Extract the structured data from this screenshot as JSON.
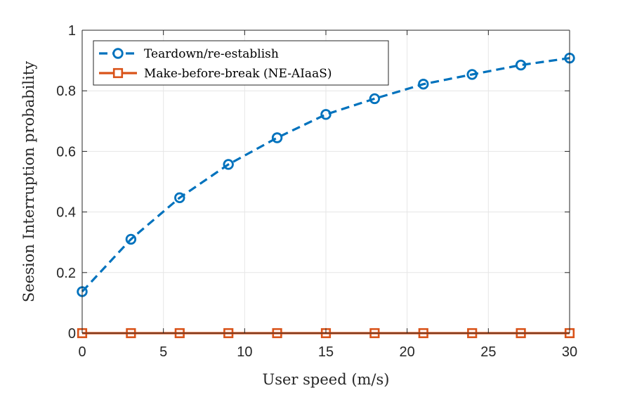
{
  "chart_data": {
    "type": "line",
    "xlabel": "User speed (m/s)",
    "ylabel": "Seesion Interruption probability",
    "xlim": [
      0,
      30
    ],
    "ylim": [
      0,
      1
    ],
    "xticks": [
      0,
      5,
      10,
      15,
      20,
      25,
      30
    ],
    "yticks": [
      0,
      0.2,
      0.4,
      0.6,
      0.8,
      1
    ],
    "xtick_labels": [
      "0",
      "5",
      "10",
      "15",
      "20",
      "25",
      "30"
    ],
    "ytick_labels": [
      "0",
      "0.2",
      "0.4",
      "0.6",
      "0.8",
      "1"
    ],
    "grid": true,
    "legend_position": "top-left",
    "series": [
      {
        "name": "Teardown/re-establish",
        "color": "#0072BD",
        "line_style": "dashed",
        "marker": "circle",
        "x": [
          0,
          3,
          6,
          9,
          12,
          15,
          18,
          21,
          24,
          27,
          30
        ],
        "y": [
          0.137,
          0.31,
          0.447,
          0.557,
          0.645,
          0.722,
          0.774,
          0.822,
          0.854,
          0.885,
          0.908
        ]
      },
      {
        "name": "Make-before-break (NE-AIaaS)",
        "color": "#D95319",
        "line_style": "solid",
        "marker": "square",
        "x": [
          0,
          3,
          6,
          9,
          12,
          15,
          18,
          21,
          24,
          27,
          30
        ],
        "y": [
          0,
          0,
          0,
          0,
          0,
          0,
          0,
          0,
          0,
          0,
          0
        ]
      }
    ]
  }
}
